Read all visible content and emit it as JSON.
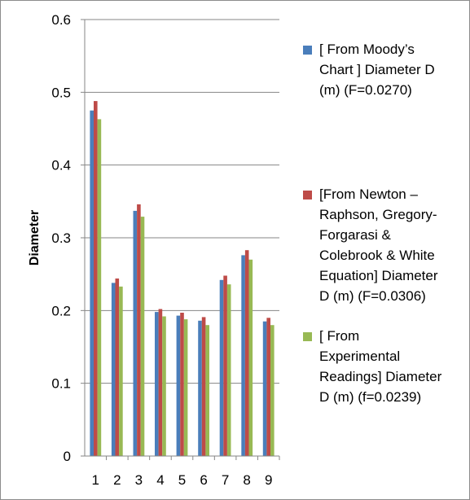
{
  "chart_data": {
    "type": "bar",
    "title": "",
    "xlabel": "",
    "ylabel": "Diameter",
    "ylim": [
      0,
      0.6
    ],
    "yticks": [
      "0",
      "0.1",
      "0.2",
      "0.3",
      "0.4",
      "0.5",
      "0.6"
    ],
    "categories": [
      "1",
      "2",
      "3",
      "4",
      "5",
      "6",
      "7",
      "8",
      "9"
    ],
    "grid": "horizontal",
    "legend_position": "right",
    "series": [
      {
        "name": "[ From Moody’s Chart ] Diameter D (m) (F=0.0270)",
        "color": "#4a7ebb",
        "values": [
          0.475,
          0.238,
          0.337,
          0.198,
          0.193,
          0.186,
          0.242,
          0.276,
          0.185
        ]
      },
      {
        "name": "[From Newton – Raphson, Gregory-Forgarasi  & Colebrook & White Equation] Diameter D (m) (F=0.0306)",
        "color": "#be4b48",
        "values": [
          0.488,
          0.244,
          0.346,
          0.202,
          0.197,
          0.191,
          0.248,
          0.283,
          0.19
        ]
      },
      {
        "name": "[ From Experimental Readings] Diameter D (m) (f=0.0239)",
        "color": "#98b954",
        "values": [
          0.463,
          0.233,
          0.329,
          0.192,
          0.188,
          0.18,
          0.236,
          0.27,
          0.18
        ]
      }
    ]
  },
  "legend": {
    "items": [
      {
        "text": "[ From Moody’s\nChart ] Diameter D\n(m) (F=0.0270)"
      },
      {
        "text": "[From Newton –\nRaphson, Gregory-\nForgarasi  &\nColebrook & White\nEquation] Diameter\nD (m) (F=0.0306)"
      },
      {
        "text": "[ From\nExperimental\nReadings] Diameter\nD (m) (f=0.0239)"
      }
    ]
  }
}
